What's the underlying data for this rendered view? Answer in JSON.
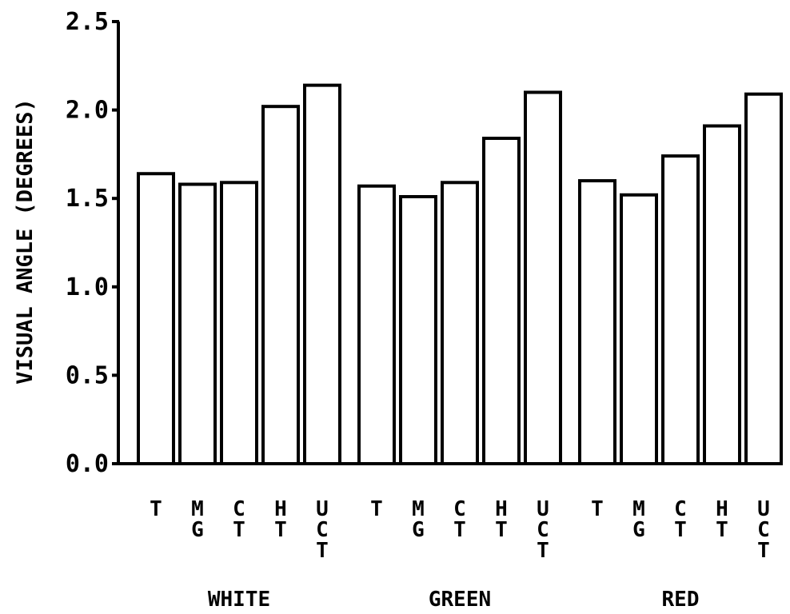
{
  "chart_data": {
    "type": "bar",
    "ylabel": "VISUAL ANGLE (DEGREES)",
    "ylim": [
      0.0,
      2.5
    ],
    "yticks": [
      "0.0",
      "0.5",
      "1.0",
      "1.5",
      "2.0",
      "2.5"
    ],
    "grid": false,
    "groups": [
      {
        "name": "WHITE",
        "categories": [
          "T",
          "MG",
          "CT",
          "HT",
          "UCT"
        ],
        "values": [
          1.64,
          1.58,
          1.59,
          2.02,
          2.14
        ]
      },
      {
        "name": "GREEN",
        "categories": [
          "T",
          "MG",
          "CT",
          "HT",
          "UCT"
        ],
        "values": [
          1.57,
          1.51,
          1.59,
          1.84,
          2.1
        ]
      },
      {
        "name": "RED",
        "categories": [
          "T",
          "MG",
          "CT",
          "HT",
          "UCT"
        ],
        "values": [
          1.6,
          1.52,
          1.74,
          1.91,
          2.09
        ]
      }
    ]
  }
}
